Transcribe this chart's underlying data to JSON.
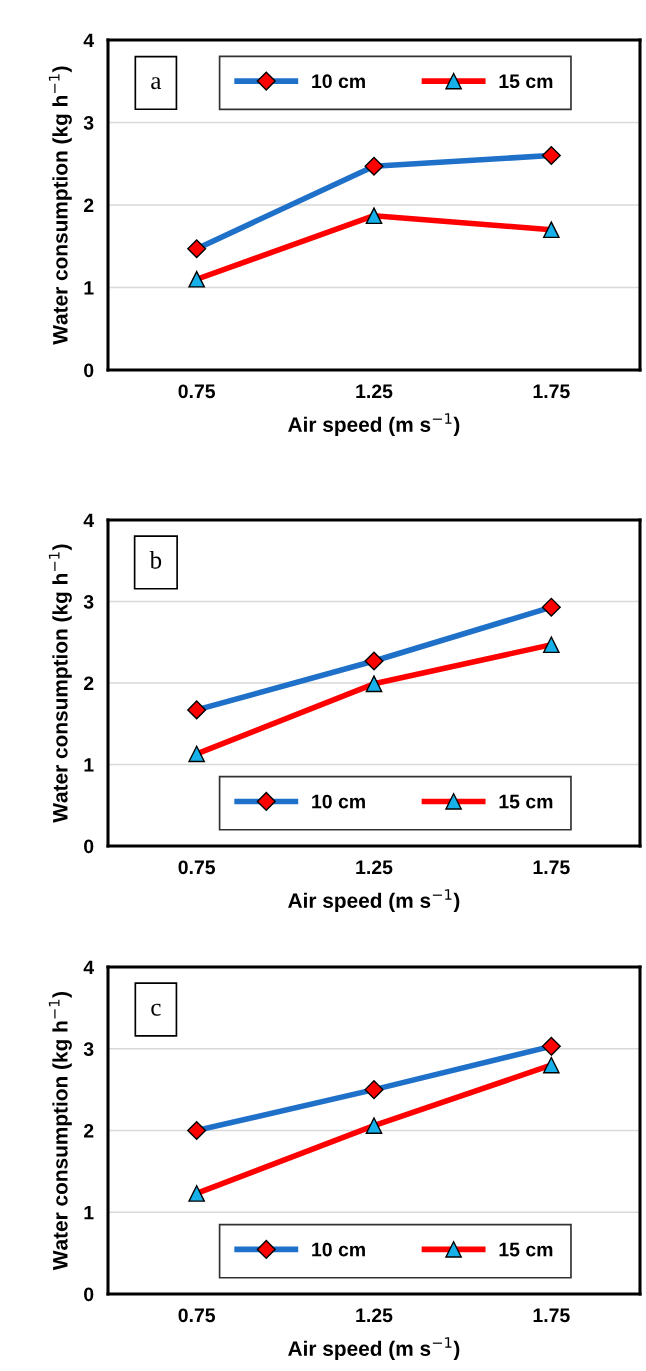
{
  "chart_data": [
    {
      "type": "line",
      "xlabel": "Air speed (m s$^{−1}$)",
      "ylabel": "Water consumption (kg h$^{−1}$)",
      "annotations": [
        "a"
      ],
      "categories": [
        "0.75",
        "1.25",
        "1.75"
      ],
      "ylim": [
        0,
        4
      ],
      "yticks": [
        0,
        1,
        2,
        3,
        4
      ],
      "grid": "y",
      "legend": "top",
      "series": [
        {
          "name": "10 cm",
          "color": "#1f70c8",
          "marker": "diamond",
          "values": [
            1.47,
            2.47,
            2.6
          ]
        },
        {
          "name": "15 cm",
          "color": "#ff0000",
          "marker": "triangle",
          "values": [
            1.1,
            1.87,
            1.7
          ]
        }
      ]
    },
    {
      "type": "line",
      "xlabel": "Air speed (m s$^{−1}$)",
      "ylabel": "Water consumption (kg h$^{−1}$)",
      "annotations": [
        "b"
      ],
      "categories": [
        "0.75",
        "1.25",
        "1.75"
      ],
      "ylim": [
        0,
        4
      ],
      "yticks": [
        0,
        1,
        2,
        3,
        4
      ],
      "grid": "y",
      "legend": "bottom",
      "series": [
        {
          "name": "10 cm",
          "color": "#1f70c8",
          "marker": "diamond",
          "values": [
            1.67,
            2.27,
            2.93
          ]
        },
        {
          "name": "15 cm",
          "color": "#ff0000",
          "marker": "triangle",
          "values": [
            1.13,
            1.99,
            2.47
          ]
        }
      ]
    },
    {
      "type": "line",
      "xlabel": "Air speed (m s$^{−1}$)",
      "ylabel": "Water consumption (kg h$^{−1}$)",
      "annotations": [
        "c"
      ],
      "categories": [
        "0.75",
        "1.25",
        "1.75"
      ],
      "ylim": [
        0,
        4
      ],
      "yticks": [
        0,
        1,
        2,
        3,
        4
      ],
      "grid": "y",
      "legend": "bottom",
      "series": [
        {
          "name": "10 cm",
          "color": "#1f70c8",
          "marker": "diamond",
          "values": [
            2.0,
            2.5,
            3.03
          ]
        },
        {
          "name": "15 cm",
          "color": "#ff0000",
          "marker": "triangle",
          "values": [
            1.23,
            2.06,
            2.8
          ]
        }
      ]
    }
  ]
}
